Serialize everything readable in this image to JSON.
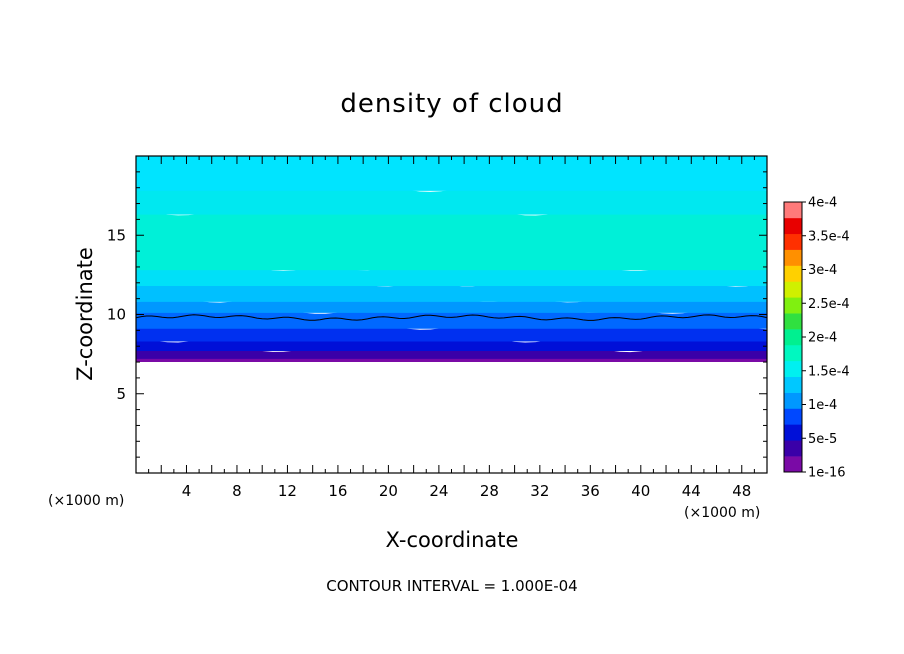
{
  "chart_data": {
    "type": "heatmap",
    "title": "density of cloud",
    "xlabel": "X-coordinate",
    "ylabel": "Z-coordinate",
    "x_unit": "(×1000 m)",
    "z_unit": "(×1000 m)",
    "xlim": [
      0,
      50
    ],
    "zlim": [
      0,
      20
    ],
    "x_ticks": [
      4,
      8,
      12,
      16,
      20,
      24,
      28,
      32,
      36,
      40,
      44,
      48
    ],
    "z_ticks": [
      5,
      10,
      15
    ],
    "colorbar_labels": [
      "4e-4",
      "3.5e-4",
      "3e-4",
      "2.5e-4",
      "2e-4",
      "1.5e-4",
      "1e-4",
      "5e-5",
      "1e-16"
    ],
    "colorbar_colors": [
      "#7a0aa6",
      "#3a00a8",
      "#0010d8",
      "#0048ff",
      "#0098ff",
      "#00c8ff",
      "#00f0f0",
      "#00f8c0",
      "#00f090",
      "#30e040",
      "#80f010",
      "#d0f000",
      "#ffd000",
      "#ff9000",
      "#ff3000",
      "#e80000",
      "#ff7a7a"
    ],
    "cloud_base_z": 7.0,
    "cloud_bands": [
      {
        "z0": 7.0,
        "z1": 7.4,
        "color": "#7a0aa6"
      },
      {
        "z0": 7.4,
        "z1": 7.9,
        "color": "#3a00a8"
      },
      {
        "z0": 7.9,
        "z1": 8.5,
        "color": "#0010d8"
      },
      {
        "z0": 8.5,
        "z1": 9.3,
        "color": "#0030f0"
      },
      {
        "z0": 9.3,
        "z1": 10.3,
        "color": "#0068ff"
      },
      {
        "z0": 10.3,
        "z1": 11.0,
        "color": "#0098ff"
      },
      {
        "z0": 11.0,
        "z1": 12.0,
        "color": "#00c0ff"
      },
      {
        "z0": 12.0,
        "z1": 13.0,
        "color": "#00e0f8"
      },
      {
        "z0": 13.0,
        "z1": 16.5,
        "color": "#00f0d8"
      },
      {
        "z0": 16.5,
        "z1": 18.0,
        "color": "#00e8f0"
      },
      {
        "z0": 18.0,
        "z1": 20.0,
        "color": "#00e4ff"
      }
    ],
    "contour_z": 9.8,
    "note": "CONTOUR INTERVAL = 1.000E-04"
  }
}
